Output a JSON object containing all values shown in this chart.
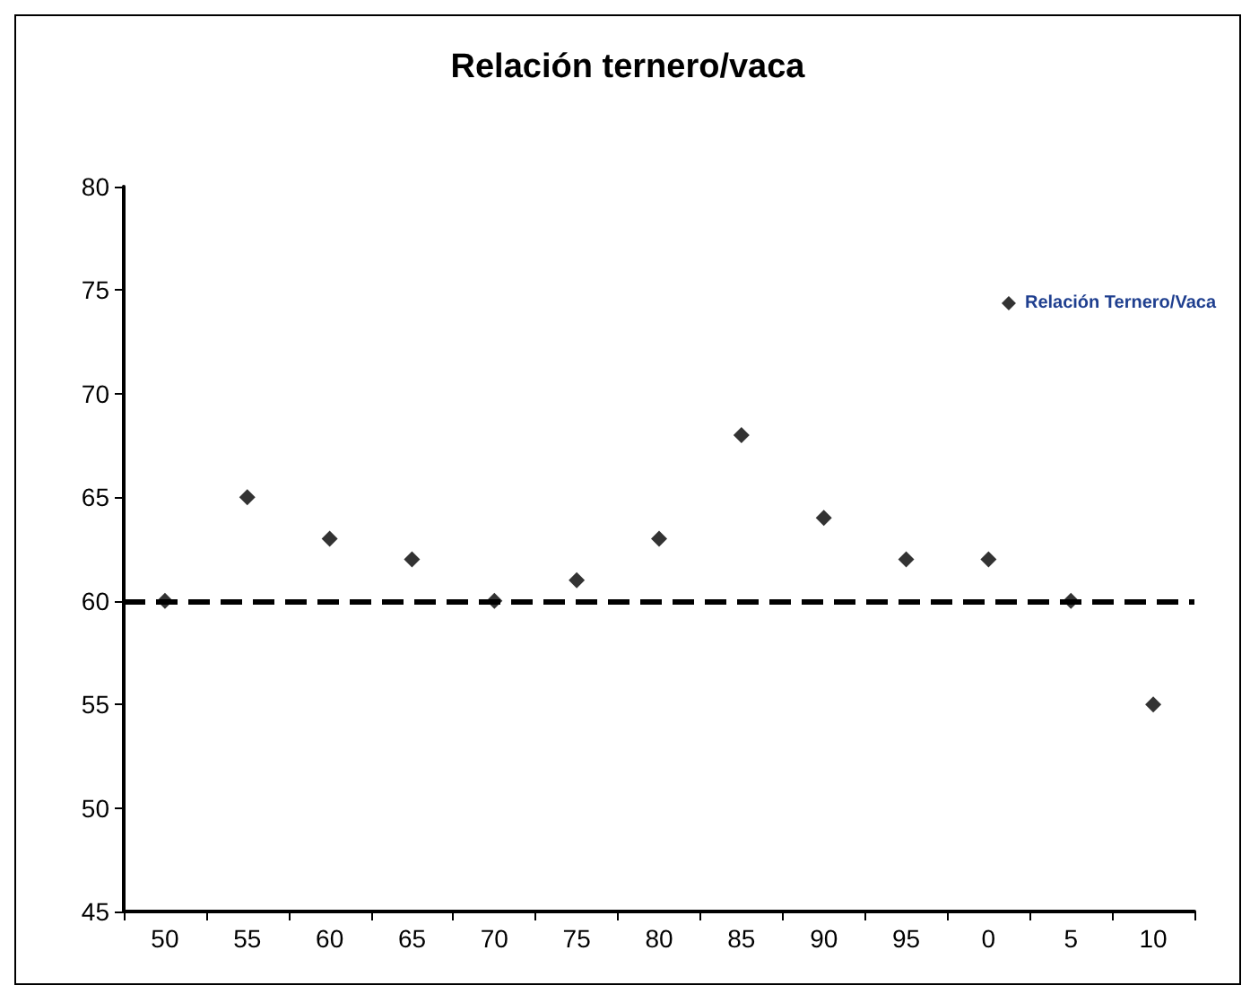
{
  "chart_data": {
    "type": "scatter",
    "title": "Relación ternero/vaca",
    "categories": [
      "50",
      "55",
      "60",
      "65",
      "70",
      "75",
      "80",
      "85",
      "90",
      "95",
      "0",
      "5",
      "10"
    ],
    "series": [
      {
        "name": "Relación Ternero/Vaca",
        "color": "#000000",
        "values": [
          60,
          65,
          63,
          62,
          60,
          61,
          63,
          68,
          64,
          62,
          62,
          60,
          55
        ]
      }
    ],
    "ylim": [
      45,
      80
    ],
    "yticks": [
      45,
      50,
      55,
      60,
      65,
      70,
      75,
      80
    ],
    "ref_lines": [
      {
        "axis": "y",
        "value": 60,
        "color": "#000000",
        "line_style": "dashed"
      }
    ],
    "grid": false,
    "legend": "right",
    "marker": "diamond"
  }
}
